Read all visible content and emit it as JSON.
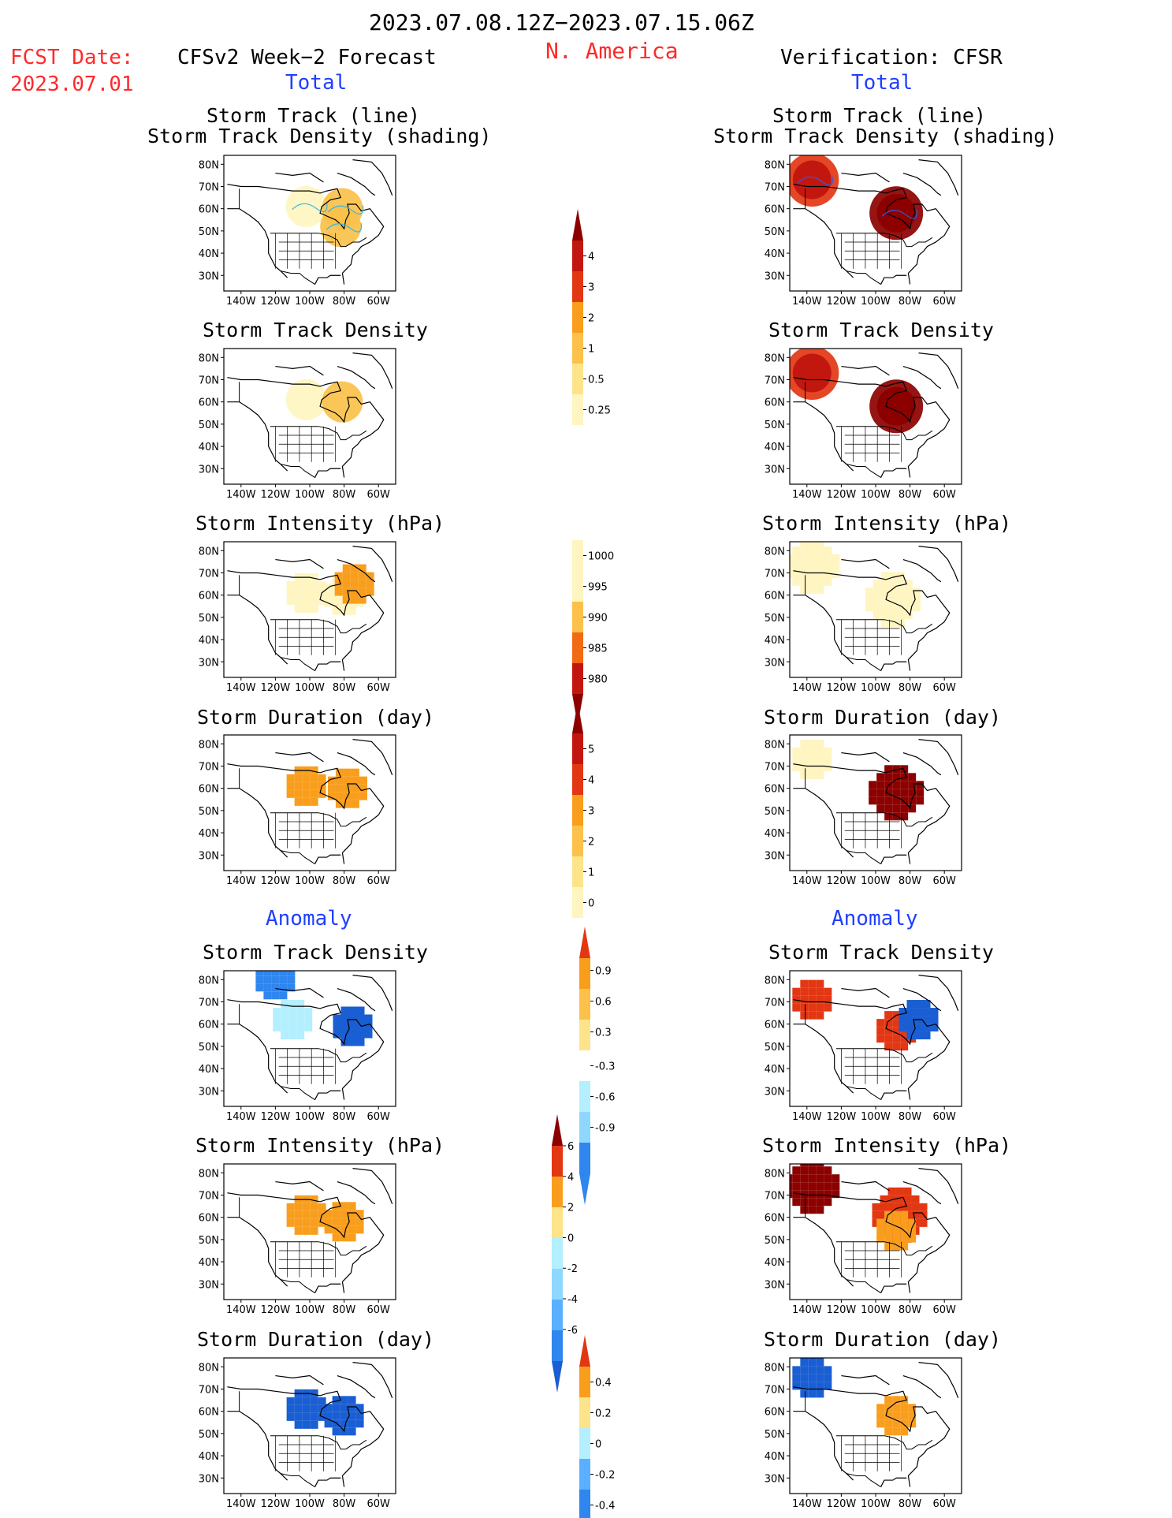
{
  "header": {
    "period": "2023.07.08.12Z−2023.07.15.06Z",
    "region": "N. America",
    "fcst_label": "FCST Date:",
    "fcst_date": "2023.07.01",
    "left_title": "CFSv2 Week−2 Forecast",
    "right_title": "Verification: CFSR",
    "total_label": "Total",
    "anomaly_label": "Anomaly"
  },
  "panel_titles": {
    "storm_track_line": "Storm Track (line)",
    "storm_track_density_shading": "Storm Track Density (shading)",
    "storm_track_density": "Storm Track Density",
    "storm_intensity": "Storm Intensity (hPa)",
    "storm_duration": "Storm Duration (day)"
  },
  "map_axes": {
    "lat_labels": [
      "80N",
      "70N",
      "60N",
      "50N",
      "40N",
      "30N"
    ],
    "lon_labels": [
      "140W",
      "120W",
      "100W",
      "80W",
      "60W"
    ]
  },
  "colors": {
    "title_red": "#ff2a2a",
    "title_blue": "#1f3fff",
    "warm": [
      "#fff5c0",
      "#fde48a",
      "#fbc14a",
      "#f99e1c",
      "#f36a14",
      "#e33612",
      "#c2170f",
      "#8c0000"
    ],
    "cool": [
      "#b4efff",
      "#8ed7ff",
      "#5ab0ff",
      "#2e86ee",
      "#1a5ed4"
    ]
  },
  "chart_data": [
    {
      "type": "heatmap",
      "panel": "forecast-total-track",
      "title": "Storm Track (line) / Storm Track Density (shading)",
      "blobs": [
        {
          "lon": -102,
          "lat": 61,
          "value": 0.4
        },
        {
          "lon": -81,
          "lat": 60,
          "value": 0.7
        },
        {
          "lon": -82,
          "lat": 52,
          "value": 0.5
        }
      ],
      "colorbar": {
        "ticks": [
          "0.25",
          "0.5",
          "1",
          "2",
          "3",
          "4"
        ]
      }
    },
    {
      "type": "heatmap",
      "panel": "verification-total-track",
      "title": "Storm Track (line) / Storm Track Density (shading)",
      "blobs": [
        {
          "lon": -137,
          "lat": 73,
          "value": 2.5
        },
        {
          "lon": -88,
          "lat": 58,
          "value": 4.5
        }
      ]
    },
    {
      "type": "heatmap",
      "panel": "forecast-total-density",
      "title": "Storm Track Density",
      "blobs": [
        {
          "lon": -102,
          "lat": 61,
          "value": 0.4
        },
        {
          "lon": -81,
          "lat": 60,
          "value": 0.7
        }
      ]
    },
    {
      "type": "heatmap",
      "panel": "verification-total-density",
      "title": "Storm Track Density",
      "blobs": [
        {
          "lon": -137,
          "lat": 73,
          "value": 2.5
        },
        {
          "lon": -88,
          "lat": 58,
          "value": 4.5
        }
      ]
    },
    {
      "type": "heatmap",
      "panel": "forecast-total-intensity",
      "title": "Storm Intensity (hPa)",
      "blobs": [
        {
          "lon": -102,
          "lat": 61,
          "value": 1000
        },
        {
          "lon": -80,
          "lat": 60,
          "value": 1000
        },
        {
          "lon": -74,
          "lat": 65,
          "value": 993
        }
      ],
      "colorbar": {
        "ticks": [
          "1000",
          "995",
          "990",
          "985",
          "980"
        ]
      }
    },
    {
      "type": "heatmap",
      "panel": "verification-total-intensity",
      "title": "Storm Intensity (hPa)",
      "blobs": [
        {
          "lon": -137,
          "lat": 73,
          "value": 1000
        },
        {
          "lon": -90,
          "lat": 58,
          "value": 1000
        }
      ]
    },
    {
      "type": "heatmap",
      "panel": "forecast-total-duration",
      "title": "Storm Duration (day)",
      "blobs": [
        {
          "lon": -102,
          "lat": 61,
          "value": 2
        },
        {
          "lon": -78,
          "lat": 60,
          "value": 2
        }
      ],
      "colorbar": {
        "ticks": [
          "0",
          "1",
          "2",
          "3",
          "4",
          "5"
        ]
      }
    },
    {
      "type": "heatmap",
      "panel": "verification-total-duration",
      "title": "Storm Duration (day)",
      "blobs": [
        {
          "lon": -137,
          "lat": 73,
          "value": 0.5
        },
        {
          "lon": -88,
          "lat": 58,
          "value": 5.5
        }
      ]
    },
    {
      "type": "heatmap",
      "panel": "forecast-anomaly-density",
      "title": "Storm Track Density",
      "blobs": [
        {
          "lon": -75,
          "lat": 59,
          "value": -0.9
        },
        {
          "lon": -110,
          "lat": 62,
          "value": -0.5
        },
        {
          "lon": -120,
          "lat": 80,
          "value": -0.7
        }
      ],
      "colorbar": {
        "ticks": [
          "-0.9",
          "-0.6",
          "-0.3",
          "0.3",
          "0.6",
          "0.9"
        ]
      }
    },
    {
      "type": "heatmap",
      "panel": "verification-anomaly-density",
      "title": "Storm Track Density",
      "blobs": [
        {
          "lon": -88,
          "lat": 57,
          "value": 1.1
        },
        {
          "lon": -137,
          "lat": 71,
          "value": 1.1
        },
        {
          "lon": -75,
          "lat": 62,
          "value": -0.9
        }
      ]
    },
    {
      "type": "heatmap",
      "panel": "forecast-anomaly-intensity",
      "title": "Storm Intensity (hPa)",
      "blobs": [
        {
          "lon": -102,
          "lat": 61,
          "value": 3
        },
        {
          "lon": -80,
          "lat": 58,
          "value": 2
        }
      ],
      "colorbar": {
        "ticks": [
          "-6",
          "-4",
          "-2",
          "0",
          "2",
          "4",
          "6"
        ]
      }
    },
    {
      "type": "heatmap",
      "panel": "verification-anomaly-intensity",
      "title": "Storm Intensity (hPa)",
      "blobs": [
        {
          "lon": -137,
          "lat": 74,
          "value": 7
        },
        {
          "lon": -86,
          "lat": 61,
          "value": 4
        },
        {
          "lon": -88,
          "lat": 54,
          "value": 2
        }
      ]
    },
    {
      "type": "heatmap",
      "panel": "forecast-anomaly-duration",
      "title": "Storm Duration (day)",
      "blobs": [
        {
          "lon": -102,
          "lat": 61,
          "value": -0.4
        },
        {
          "lon": -80,
          "lat": 58,
          "value": -0.4
        }
      ],
      "colorbar": {
        "ticks": [
          "-0.4",
          "-0.2",
          "0",
          "0.2",
          "0.4"
        ]
      }
    },
    {
      "type": "heatmap",
      "panel": "verification-anomaly-duration",
      "title": "Storm Duration (day)",
      "blobs": [
        {
          "lon": -137,
          "lat": 75,
          "value": -0.5
        },
        {
          "lon": -88,
          "lat": 58,
          "value": 0.35
        }
      ]
    }
  ]
}
